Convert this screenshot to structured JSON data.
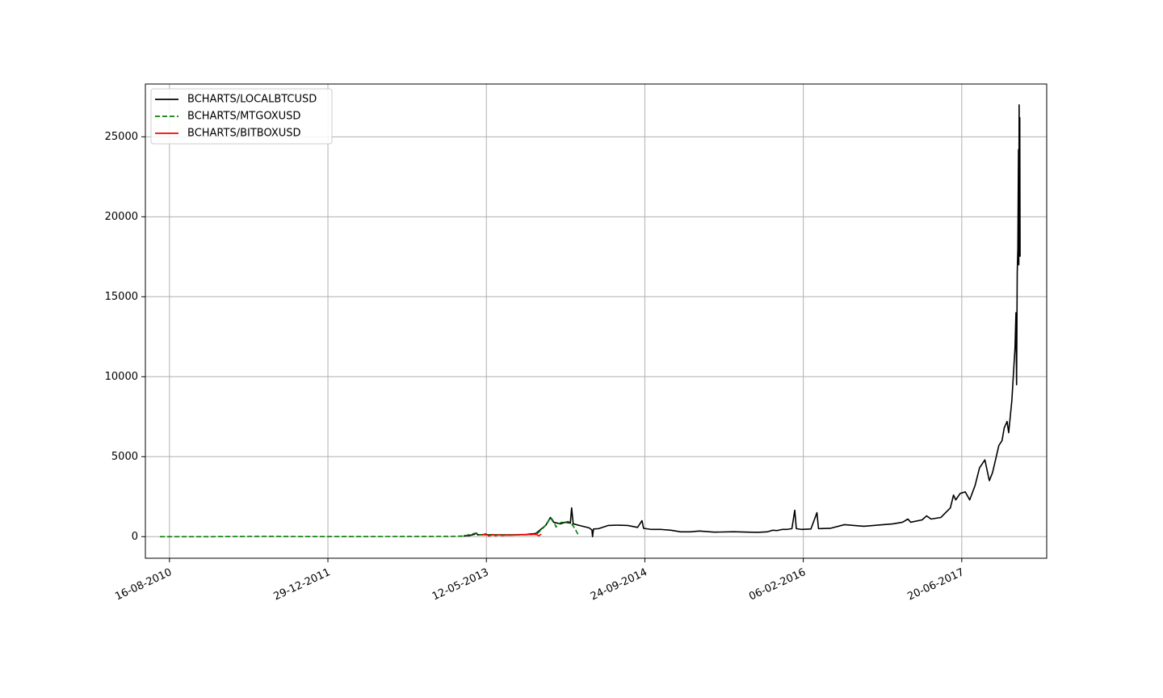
{
  "chart_data": {
    "type": "line",
    "title": "",
    "xlabel": "",
    "ylabel": "",
    "x_axis": {
      "type": "date",
      "range": [
        "2010-06-01",
        "2018-03-15"
      ],
      "ticks": [
        {
          "date": "2010-08-16",
          "label": "16-08-2010"
        },
        {
          "date": "2011-12-29",
          "label": "29-12-2011"
        },
        {
          "date": "2013-05-12",
          "label": "12-05-2013"
        },
        {
          "date": "2014-09-24",
          "label": "24-09-2014"
        },
        {
          "date": "2016-02-06",
          "label": "06-02-2016"
        },
        {
          "date": "2017-06-20",
          "label": "20-06-2017"
        }
      ],
      "tick_label_rotation": -25
    },
    "y_axis": {
      "range": [
        -1350,
        28300
      ],
      "ticks": [
        0,
        5000,
        10000,
        15000,
        20000,
        25000
      ]
    },
    "grid": true,
    "legend": {
      "position": "top-left",
      "entries": [
        "BCHARTS/LOCALBTCUSD",
        "BCHARTS/MTGOXUSD",
        "BCHARTS/BITBOXUSD"
      ]
    },
    "series": [
      {
        "name": "BCHARTS/LOCALBTCUSD",
        "color": "#000000",
        "style": "solid",
        "points": [
          [
            "2013-03-01",
            40
          ],
          [
            "2013-03-20",
            70
          ],
          [
            "2013-04-05",
            150
          ],
          [
            "2013-04-10",
            230
          ],
          [
            "2013-04-15",
            110
          ],
          [
            "2013-05-01",
            130
          ],
          [
            "2013-06-15",
            110
          ],
          [
            "2013-08-01",
            110
          ],
          [
            "2013-09-15",
            140
          ],
          [
            "2013-10-15",
            200
          ],
          [
            "2013-11-15",
            700
          ],
          [
            "2013-11-30",
            1200
          ],
          [
            "2013-12-10",
            900
          ],
          [
            "2013-12-31",
            800
          ],
          [
            "2014-01-15",
            900
          ],
          [
            "2014-02-01",
            850
          ],
          [
            "2014-02-05",
            1800
          ],
          [
            "2014-02-10",
            800
          ],
          [
            "2014-03-01",
            700
          ],
          [
            "2014-04-01",
            550
          ],
          [
            "2014-04-10",
            420
          ],
          [
            "2014-04-12",
            0
          ],
          [
            "2014-04-15",
            480
          ],
          [
            "2014-05-01",
            500
          ],
          [
            "2014-06-01",
            700
          ],
          [
            "2014-07-01",
            720
          ],
          [
            "2014-08-01",
            700
          ],
          [
            "2014-09-01",
            580
          ],
          [
            "2014-09-15",
            1000
          ],
          [
            "2014-09-20",
            520
          ],
          [
            "2014-10-15",
            450
          ],
          [
            "2014-11-15",
            450
          ],
          [
            "2014-12-15",
            400
          ],
          [
            "2015-01-15",
            300
          ],
          [
            "2015-02-15",
            300
          ],
          [
            "2015-03-15",
            350
          ],
          [
            "2015-05-01",
            280
          ],
          [
            "2015-07-01",
            310
          ],
          [
            "2015-08-15",
            280
          ],
          [
            "2015-09-15",
            270
          ],
          [
            "2015-10-15",
            300
          ],
          [
            "2015-11-01",
            400
          ],
          [
            "2015-11-15",
            380
          ],
          [
            "2015-12-01",
            450
          ],
          [
            "2015-12-15",
            450
          ],
          [
            "2016-01-01",
            500
          ],
          [
            "2016-01-10",
            1650
          ],
          [
            "2016-01-15",
            500
          ],
          [
            "2016-02-01",
            450
          ],
          [
            "2016-03-01",
            480
          ],
          [
            "2016-03-20",
            1500
          ],
          [
            "2016-03-25",
            500
          ],
          [
            "2016-05-01",
            520
          ],
          [
            "2016-06-15",
            750
          ],
          [
            "2016-07-15",
            700
          ],
          [
            "2016-08-15",
            650
          ],
          [
            "2016-09-15",
            700
          ],
          [
            "2016-10-15",
            750
          ],
          [
            "2016-11-15",
            800
          ],
          [
            "2016-12-15",
            900
          ],
          [
            "2017-01-01",
            1100
          ],
          [
            "2017-01-10",
            900
          ],
          [
            "2017-02-15",
            1050
          ],
          [
            "2017-03-01",
            1300
          ],
          [
            "2017-03-15",
            1100
          ],
          [
            "2017-04-15",
            1200
          ],
          [
            "2017-05-15",
            1800
          ],
          [
            "2017-05-25",
            2600
          ],
          [
            "2017-06-01",
            2300
          ],
          [
            "2017-06-15",
            2700
          ],
          [
            "2017-07-01",
            2800
          ],
          [
            "2017-07-15",
            2300
          ],
          [
            "2017-08-01",
            3200
          ],
          [
            "2017-08-15",
            4300
          ],
          [
            "2017-09-01",
            4800
          ],
          [
            "2017-09-15",
            3500
          ],
          [
            "2017-09-25",
            4000
          ],
          [
            "2017-10-01",
            4500
          ],
          [
            "2017-10-15",
            5700
          ],
          [
            "2017-10-25",
            6000
          ],
          [
            "2017-11-01",
            6800
          ],
          [
            "2017-11-10",
            7200
          ],
          [
            "2017-11-15",
            6500
          ],
          [
            "2017-11-25",
            8500
          ],
          [
            "2017-12-01",
            10500
          ],
          [
            "2017-12-05",
            11800
          ],
          [
            "2017-12-08",
            14000
          ],
          [
            "2017-12-10",
            9500
          ],
          [
            "2017-12-12",
            16500
          ],
          [
            "2017-12-14",
            18000
          ],
          [
            "2017-12-16",
            24200
          ],
          [
            "2017-12-17",
            17000
          ],
          [
            "2017-12-18",
            27000
          ],
          [
            "2017-12-19",
            19000
          ],
          [
            "2017-12-20",
            26200
          ],
          [
            "2017-12-21",
            17500
          ]
        ]
      },
      {
        "name": "BCHARTS/MTGOXUSD",
        "color": "#008000",
        "style": "dashed",
        "points": [
          [
            "2010-07-17",
            0
          ],
          [
            "2011-01-01",
            0.3
          ],
          [
            "2011-06-10",
            20
          ],
          [
            "2011-10-01",
            5
          ],
          [
            "2012-01-01",
            5
          ],
          [
            "2012-06-01",
            6
          ],
          [
            "2012-12-01",
            13
          ],
          [
            "2013-02-01",
            20
          ],
          [
            "2013-03-01",
            40
          ],
          [
            "2013-04-10",
            230
          ],
          [
            "2013-04-20",
            120
          ],
          [
            "2013-05-15",
            120
          ],
          [
            "2013-06-15",
            110
          ],
          [
            "2013-08-15",
            110
          ],
          [
            "2013-10-01",
            130
          ],
          [
            "2013-10-20",
            200
          ],
          [
            "2013-11-10",
            600
          ],
          [
            "2013-11-22",
            900
          ],
          [
            "2013-11-30",
            1200
          ],
          [
            "2013-12-05",
            1100
          ],
          [
            "2013-12-10",
            950
          ],
          [
            "2013-12-18",
            600
          ],
          [
            "2013-12-25",
            800
          ],
          [
            "2014-01-05",
            900
          ],
          [
            "2014-01-15",
            900
          ],
          [
            "2014-01-25",
            950
          ],
          [
            "2014-02-05",
            800
          ],
          [
            "2014-02-12",
            600
          ],
          [
            "2014-02-18",
            400
          ],
          [
            "2014-02-25",
            150
          ]
        ]
      },
      {
        "name": "BCHARTS/BITBOXUSD",
        "color": "#ff0000",
        "style": "solid",
        "points": [
          [
            "2013-04-28",
            100
          ],
          [
            "2013-05-10",
            180
          ],
          [
            "2013-05-20",
            40
          ],
          [
            "2013-06-01",
            120
          ],
          [
            "2013-06-10",
            60
          ],
          [
            "2013-06-20",
            110
          ],
          [
            "2013-07-01",
            70
          ],
          [
            "2013-07-15",
            100
          ],
          [
            "2013-08-01",
            90
          ],
          [
            "2013-08-15",
            110
          ],
          [
            "2013-09-01",
            115
          ],
          [
            "2013-09-15",
            125
          ],
          [
            "2013-10-01",
            130
          ],
          [
            "2013-10-15",
            145
          ],
          [
            "2013-10-25",
            60
          ],
          [
            "2013-11-01",
            160
          ]
        ]
      }
    ]
  }
}
